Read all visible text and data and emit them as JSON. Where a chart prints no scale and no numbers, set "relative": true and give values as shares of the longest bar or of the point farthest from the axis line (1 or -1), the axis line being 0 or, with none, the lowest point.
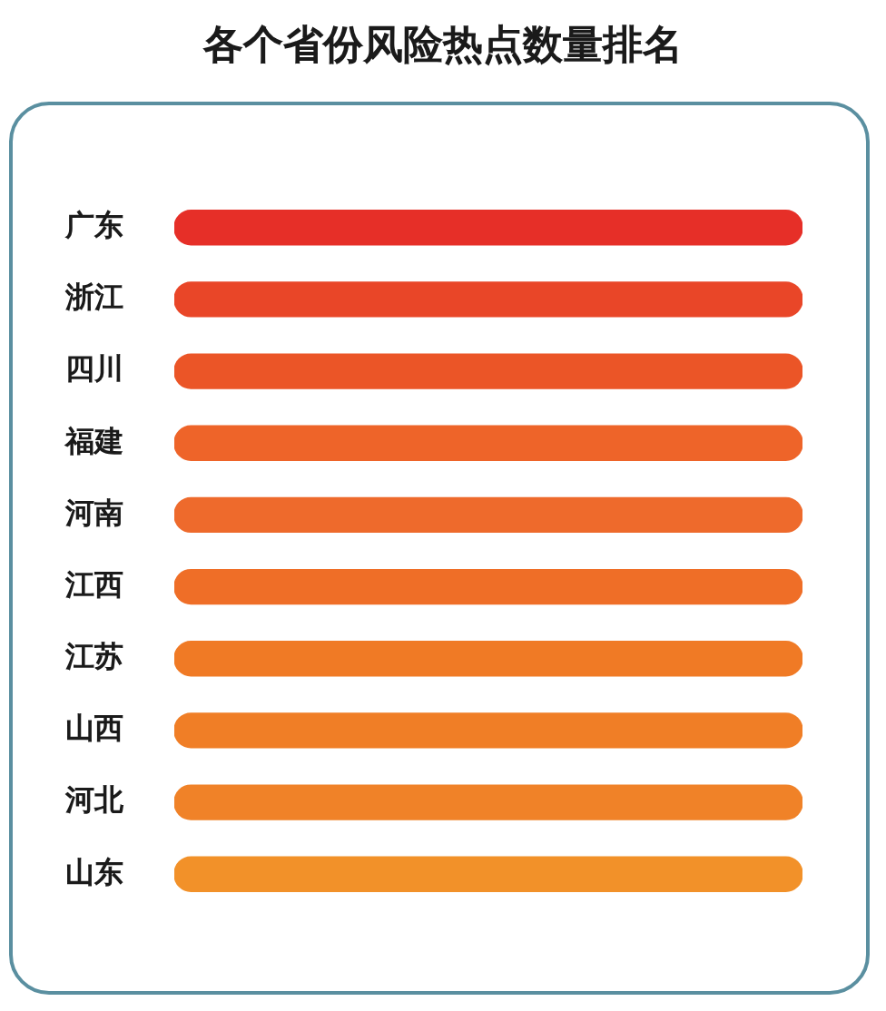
{
  "chart_data": {
    "type": "bar",
    "orientation": "horizontal",
    "relative": true,
    "title": "各个省份风险热点数量排名",
    "categories": [
      "广东",
      "浙江",
      "四川",
      "福建",
      "河南",
      "江西",
      "江苏",
      "山西",
      "河北",
      "山东"
    ],
    "values": [
      1,
      1,
      1,
      1,
      1,
      1,
      1,
      1,
      1,
      1
    ],
    "colors": [
      "#e62f28",
      "#e94628",
      "#eb5527",
      "#ee6429",
      "#ee6a2c",
      "#ef6e27",
      "#f07a25",
      "#f07e26",
      "#f08228",
      "#f29129"
    ]
  }
}
